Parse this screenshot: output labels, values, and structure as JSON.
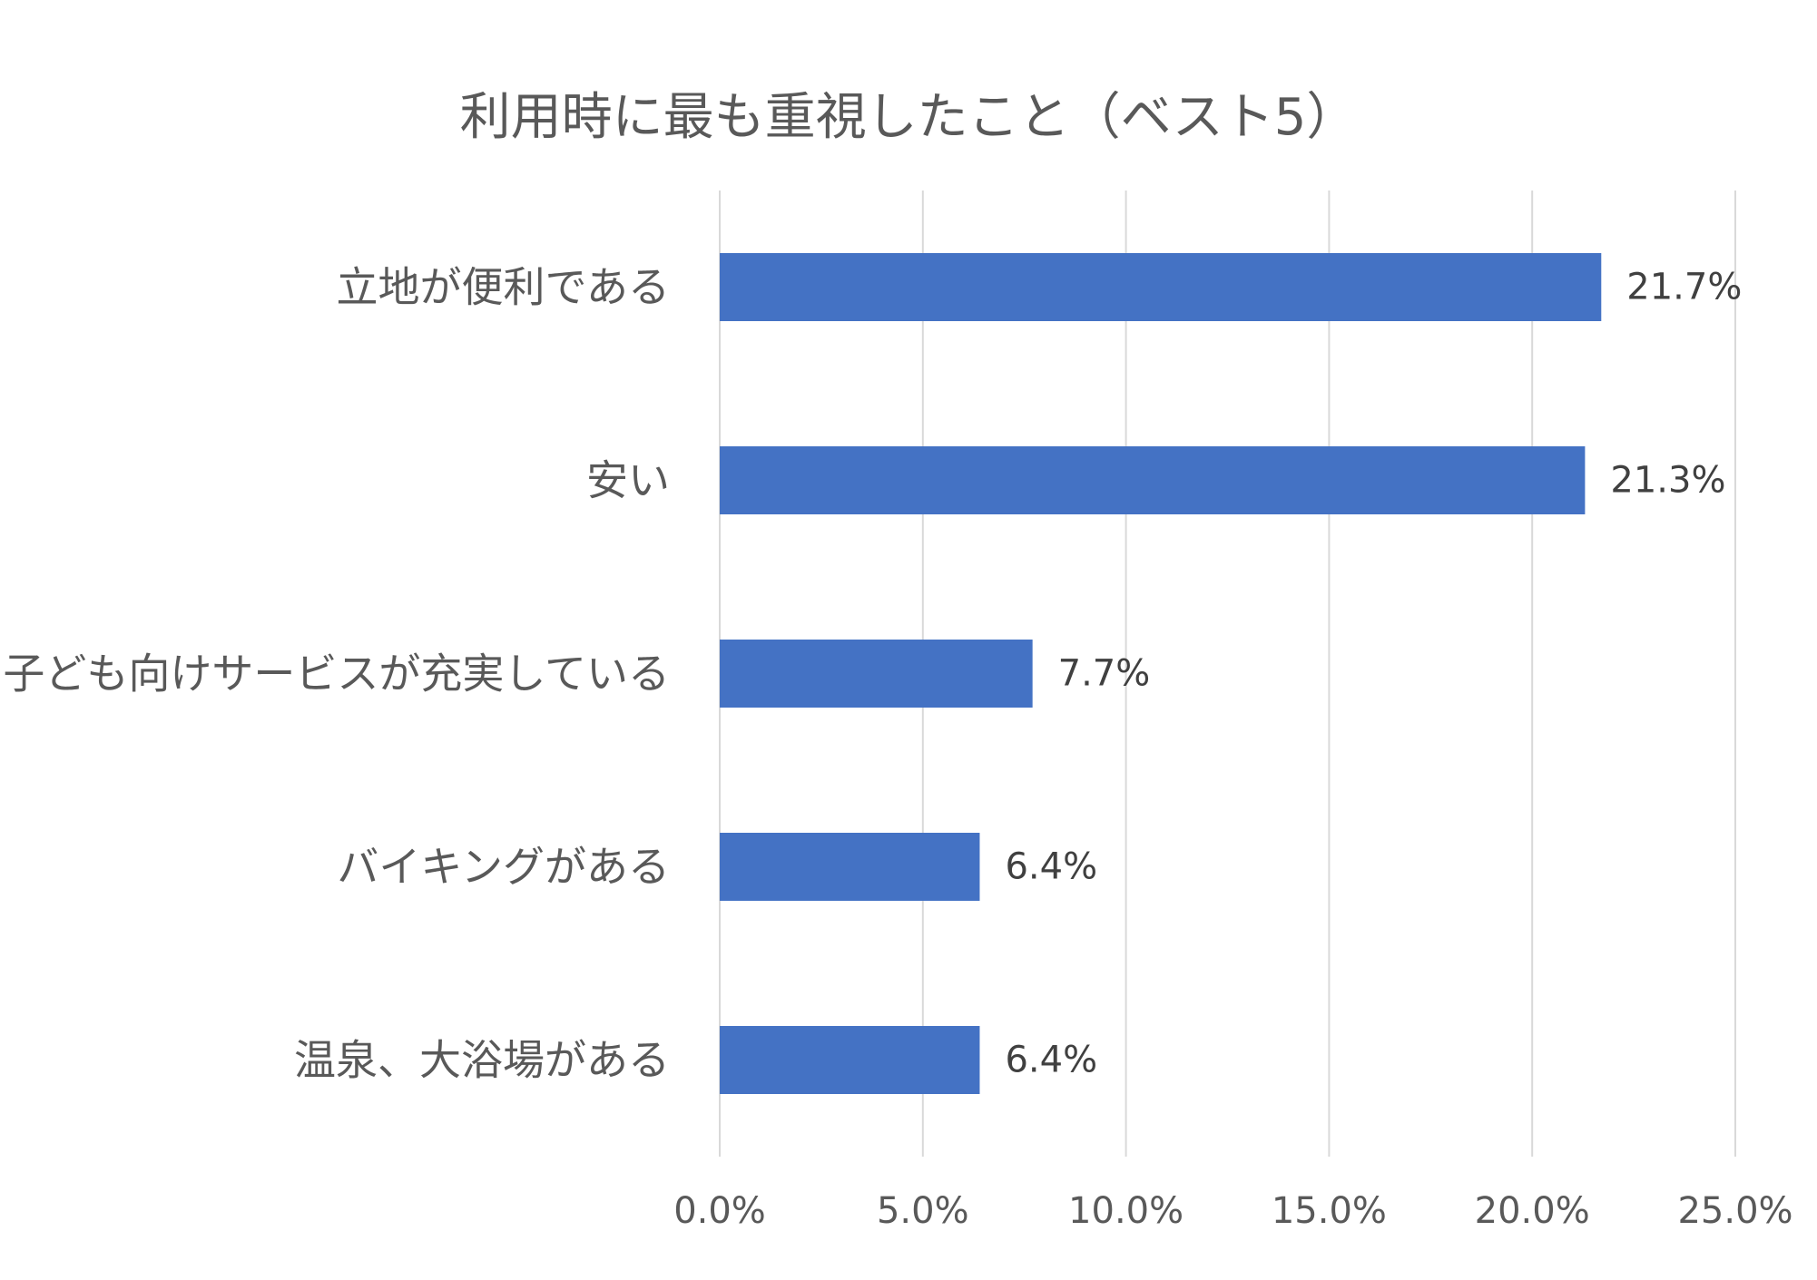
{
  "chart_data": {
    "type": "bar",
    "orientation": "horizontal",
    "title": "利用時に最も重視したこと（ベスト5）",
    "categories": [
      "立地が便利である",
      "安い",
      "子ども向けサービスが充実している",
      "バイキングがある",
      "温泉、大浴場がある"
    ],
    "values": [
      21.7,
      21.3,
      7.7,
      6.4,
      6.4
    ],
    "value_labels": [
      "21.7%",
      "21.3%",
      "7.7%",
      "6.4%",
      "6.4%"
    ],
    "xlim": [
      0,
      25
    ],
    "ticks": [
      0,
      5,
      10,
      15,
      20,
      25
    ],
    "tick_labels": [
      "0.0%",
      "5.0%",
      "10.0%",
      "15.0%",
      "20.0%",
      "25.0%"
    ],
    "grid": true,
    "legend": "none",
    "bar_color": "#4472C4"
  }
}
